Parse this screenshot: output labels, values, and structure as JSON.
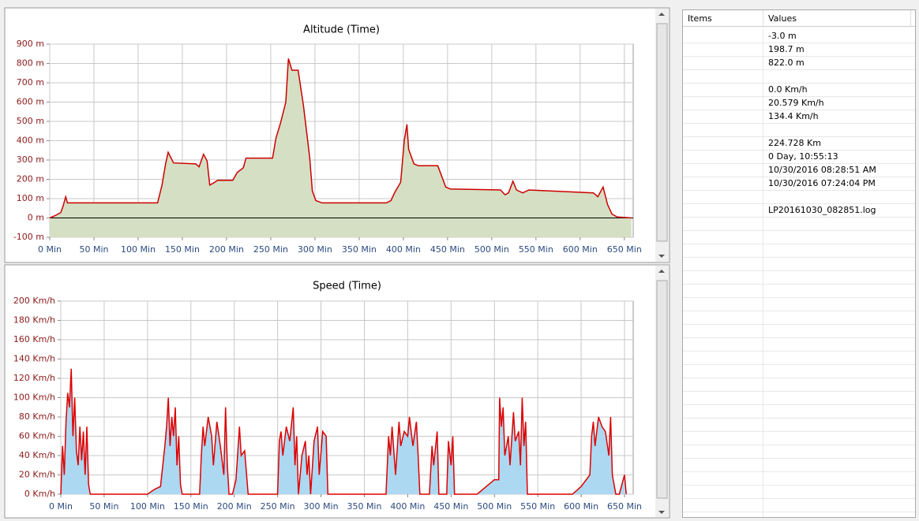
{
  "chart_data": [
    {
      "type": "area",
      "title": "Altitude (Time)",
      "x": [
        0,
        6,
        12.5,
        15,
        18,
        20,
        24,
        122,
        127,
        131,
        134,
        140,
        165,
        169,
        174,
        178,
        181,
        185,
        190,
        207,
        212,
        219,
        222,
        252,
        256,
        261,
        267,
        270,
        274,
        281,
        287,
        294,
        297,
        301,
        308,
        381,
        386,
        390,
        397,
        401,
        404,
        406,
        412,
        417,
        439,
        448,
        453,
        510,
        515,
        519,
        524,
        528,
        535,
        542,
        615,
        620,
        626,
        631,
        636,
        642,
        658
      ],
      "values": [
        0,
        12,
        28,
        60,
        110,
        78,
        78,
        78,
        170,
        280,
        340,
        285,
        280,
        265,
        330,
        295,
        170,
        180,
        195,
        195,
        235,
        260,
        310,
        310,
        415,
        490,
        600,
        825,
        765,
        765,
        580,
        315,
        140,
        90,
        78,
        78,
        90,
        130,
        185,
        400,
        485,
        355,
        280,
        270,
        270,
        160,
        150,
        145,
        120,
        130,
        190,
        145,
        130,
        145,
        130,
        110,
        160,
        70,
        20,
        5,
        0
      ],
      "color": "#cc0000",
      "fill": "#d5dfc3",
      "zero_line": true,
      "grid": true,
      "xlim": [
        0,
        660
      ],
      "ylim": [
        -100,
        900
      ],
      "xticks": [
        {
          "value": 0,
          "label": "0 Min"
        },
        {
          "value": 50,
          "label": "50 Min"
        },
        {
          "value": 100,
          "label": "100 Min"
        },
        {
          "value": 150,
          "label": "150 Min"
        },
        {
          "value": 200,
          "label": "200 Min"
        },
        {
          "value": 250,
          "label": "250 Min"
        },
        {
          "value": 300,
          "label": "300 Min"
        },
        {
          "value": 350,
          "label": "350 Min"
        },
        {
          "value": 400,
          "label": "400 Min"
        },
        {
          "value": 450,
          "label": "450 Min"
        },
        {
          "value": 500,
          "label": "500 Min"
        },
        {
          "value": 550,
          "label": "550 Min"
        },
        {
          "value": 600,
          "label": "600 Min"
        },
        {
          "value": 650,
          "label": "650 Min"
        }
      ],
      "yticks": [
        {
          "value": -100,
          "label": "-100 m"
        },
        {
          "value": 0,
          "label": "0 m"
        },
        {
          "value": 100,
          "label": "100 m"
        },
        {
          "value": 200,
          "label": "200 m"
        },
        {
          "value": 300,
          "label": "300 m"
        },
        {
          "value": 400,
          "label": "400 m"
        },
        {
          "value": 500,
          "label": "500 m"
        },
        {
          "value": 600,
          "label": "600 m"
        },
        {
          "value": 700,
          "label": "700 m"
        },
        {
          "value": 800,
          "label": "800 m"
        },
        {
          "value": 900,
          "label": "900 m"
        }
      ]
    },
    {
      "type": "area",
      "title": "Speed (Time)",
      "x": [
        0,
        2,
        4,
        6,
        8,
        10,
        12,
        14,
        16,
        18,
        20,
        22,
        24,
        26,
        28,
        30,
        32,
        34,
        90,
        100,
        108,
        115,
        120,
        122,
        124,
        126,
        128,
        130,
        132,
        134,
        136,
        138,
        140,
        160,
        162,
        164,
        166,
        170,
        174,
        176,
        180,
        184,
        188,
        190,
        192,
        194,
        198,
        202,
        206,
        208,
        212,
        216,
        250,
        252,
        254,
        256,
        260,
        264,
        268,
        270,
        272,
        274,
        278,
        282,
        284,
        286,
        288,
        292,
        296,
        298,
        302,
        306,
        308,
        375,
        378,
        380,
        382,
        386,
        390,
        392,
        396,
        400,
        402,
        406,
        410,
        412,
        414,
        425,
        428,
        430,
        434,
        436,
        445,
        447,
        450,
        452,
        454,
        480,
        500,
        505,
        506,
        508,
        510,
        512,
        516,
        518,
        522,
        524,
        528,
        530,
        532,
        534,
        536,
        538,
        590,
        600,
        610,
        612,
        614,
        616,
        620,
        624,
        628,
        632,
        634,
        636,
        640,
        644,
        650,
        652
      ],
      "values": [
        0,
        50,
        20,
        75,
        105,
        90,
        130,
        60,
        100,
        45,
        30,
        70,
        35,
        65,
        20,
        70,
        10,
        0,
        0,
        0,
        5,
        8,
        50,
        70,
        100,
        50,
        80,
        60,
        90,
        30,
        60,
        10,
        0,
        0,
        40,
        70,
        50,
        80,
        60,
        30,
        75,
        50,
        20,
        90,
        30,
        0,
        0,
        15,
        70,
        40,
        45,
        0,
        0,
        55,
        65,
        40,
        70,
        55,
        90,
        30,
        60,
        0,
        40,
        55,
        20,
        40,
        0,
        55,
        70,
        20,
        65,
        60,
        0,
        0,
        60,
        40,
        70,
        20,
        75,
        50,
        65,
        60,
        80,
        50,
        75,
        40,
        0,
        0,
        50,
        30,
        65,
        0,
        0,
        55,
        30,
        60,
        0,
        0,
        15,
        15,
        100,
        70,
        90,
        40,
        60,
        30,
        85,
        55,
        65,
        30,
        100,
        50,
        75,
        0,
        0,
        8,
        20,
        60,
        75,
        50,
        80,
        70,
        65,
        40,
        80,
        20,
        0,
        0,
        20,
        0
      ],
      "color": "#dd0000",
      "fill": "#acd8f2",
      "zero_line": false,
      "grid": true,
      "xlim": [
        0,
        660
      ],
      "ylim": [
        0,
        200
      ],
      "xticks": [
        {
          "value": 0,
          "label": "0 Min"
        },
        {
          "value": 50,
          "label": "50 Min"
        },
        {
          "value": 100,
          "label": "100 Min"
        },
        {
          "value": 150,
          "label": "150 Min"
        },
        {
          "value": 200,
          "label": "200 Min"
        },
        {
          "value": 250,
          "label": "250 Min"
        },
        {
          "value": 300,
          "label": "300 Min"
        },
        {
          "value": 350,
          "label": "350 Min"
        },
        {
          "value": 400,
          "label": "400 Min"
        },
        {
          "value": 450,
          "label": "450 Min"
        },
        {
          "value": 500,
          "label": "500 Min"
        },
        {
          "value": 550,
          "label": "550 Min"
        },
        {
          "value": 600,
          "label": "600 Min"
        },
        {
          "value": 650,
          "label": "650 Min"
        }
      ],
      "yticks": [
        {
          "value": 0,
          "label": "0 Km/h"
        },
        {
          "value": 20,
          "label": "20 Km/h"
        },
        {
          "value": 40,
          "label": "40 Km/h"
        },
        {
          "value": 60,
          "label": "60 Km/h"
        },
        {
          "value": 80,
          "label": "80 Km/h"
        },
        {
          "value": 100,
          "label": "100 Km/h"
        },
        {
          "value": 120,
          "label": "120 Km/h"
        },
        {
          "value": 140,
          "label": "140 Km/h"
        },
        {
          "value": 160,
          "label": "160 Km/h"
        },
        {
          "value": 180,
          "label": "180 Km/h"
        },
        {
          "value": 200,
          "label": "200 Km/h"
        }
      ]
    }
  ],
  "table": {
    "columns": [
      "Items",
      "Values"
    ],
    "groups": [
      [
        "-3.0 m",
        "198.7 m",
        "822.0 m"
      ],
      [
        "0.0 Km/h",
        "20.579 Km/h",
        "134.4 Km/h"
      ],
      [
        "224.728 Km",
        "0 Day, 10:55:13",
        "10/30/2016 08:28:51 AM",
        "10/30/2016 07:24:04 PM"
      ],
      [
        "LP20161030_082851.log"
      ]
    ]
  }
}
